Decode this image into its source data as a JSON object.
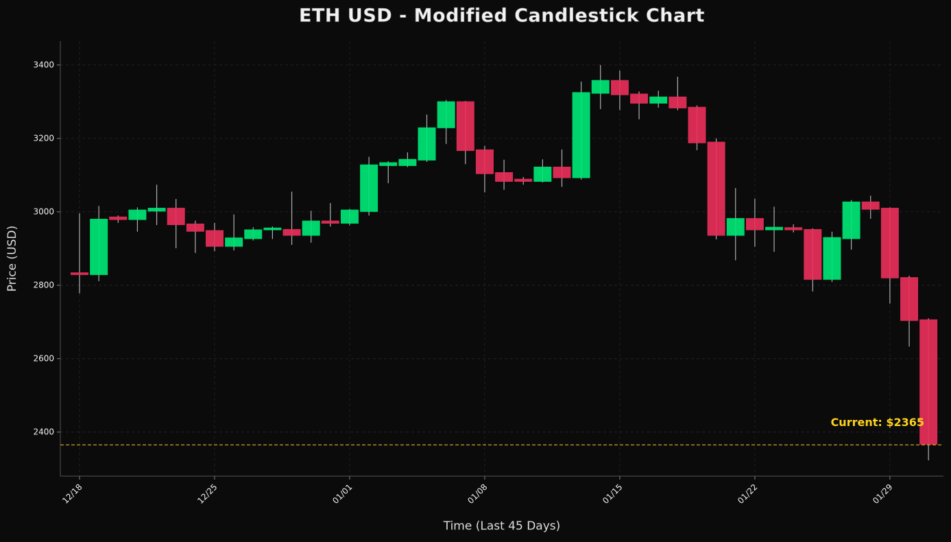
{
  "chart_data": {
    "type": "candlestick",
    "title": "ETH USD - Modified Candlestick Chart",
    "x_label": "Time (Last 45 Days)",
    "y_label": "Price (USD)",
    "categories": [
      "12/18",
      null,
      null,
      null,
      null,
      null,
      null,
      "12/25",
      null,
      null,
      null,
      null,
      null,
      null,
      "01/01",
      null,
      null,
      null,
      null,
      null,
      null,
      "01/08",
      null,
      null,
      null,
      null,
      null,
      null,
      "01/15",
      null,
      null,
      null,
      null,
      null,
      null,
      "01/22",
      null,
      null,
      null,
      null,
      null,
      null,
      "01/29",
      null,
      null
    ],
    "open": [
      2835,
      2828,
      2987,
      2978,
      3001,
      3011,
      2968,
      2950,
      2905,
      2926,
      2950,
      2953,
      2935,
      2976,
      2968,
      3000,
      3125,
      3125,
      3140,
      3228,
      3301,
      3170,
      3108,
      3090,
      3082,
      3123,
      3092,
      3322,
      3359,
      3322,
      3295,
      3314,
      3286,
      3191,
      2935,
      2983,
      2950,
      2958,
      2953,
      2815,
      2926,
      3028,
      3011,
      2822,
      2707
    ],
    "high": [
      2996,
      3016,
      2990,
      3012,
      3074,
      3035,
      2976,
      2970,
      2993,
      2958,
      2960,
      3055,
      3003,
      3024,
      3008,
      3150,
      3138,
      3162,
      3265,
      3305,
      3302,
      3180,
      3142,
      3095,
      3143,
      3170,
      3355,
      3400,
      3385,
      3328,
      3330,
      3368,
      3290,
      3200,
      3065,
      3036,
      3014,
      2966,
      2955,
      2946,
      3032,
      3044,
      3012,
      2826,
      2710
    ],
    "low": [
      2778,
      2811,
      2970,
      2946,
      2964,
      2901,
      2888,
      2893,
      2895,
      2922,
      2926,
      2910,
      2916,
      2960,
      2963,
      2990,
      3078,
      3122,
      3136,
      3185,
      3130,
      3053,
      3060,
      3074,
      3080,
      3068,
      3088,
      3280,
      3277,
      3252,
      3284,
      3277,
      3168,
      2925,
      2868,
      2905,
      2891,
      2944,
      2783,
      2809,
      2897,
      2981,
      2750,
      2633,
      2323
    ],
    "close": [
      2828,
      2981,
      2978,
      3006,
      3011,
      2964,
      2946,
      2905,
      2930,
      2952,
      2957,
      2935,
      2976,
      2968,
      3006,
      3129,
      3135,
      3144,
      3230,
      3301,
      3166,
      3103,
      3082,
      3082,
      3123,
      3092,
      3326,
      3359,
      3318,
      3295,
      3314,
      3282,
      3187,
      2935,
      2983,
      2950,
      2959,
      2950,
      2815,
      2931,
      3028,
      3006,
      2819,
      2703,
      2366
    ],
    "up_color": "#00e676",
    "down_color": "#e8305a",
    "wick_color": "#b0b0b0",
    "ylim": [
      2280,
      3465
    ],
    "yticks": [
      2400,
      2600,
      2800,
      3000,
      3200,
      3400
    ],
    "grid": true,
    "current_price": 2365,
    "current_color": "#c9a227",
    "annotation": "Current: $2365"
  }
}
